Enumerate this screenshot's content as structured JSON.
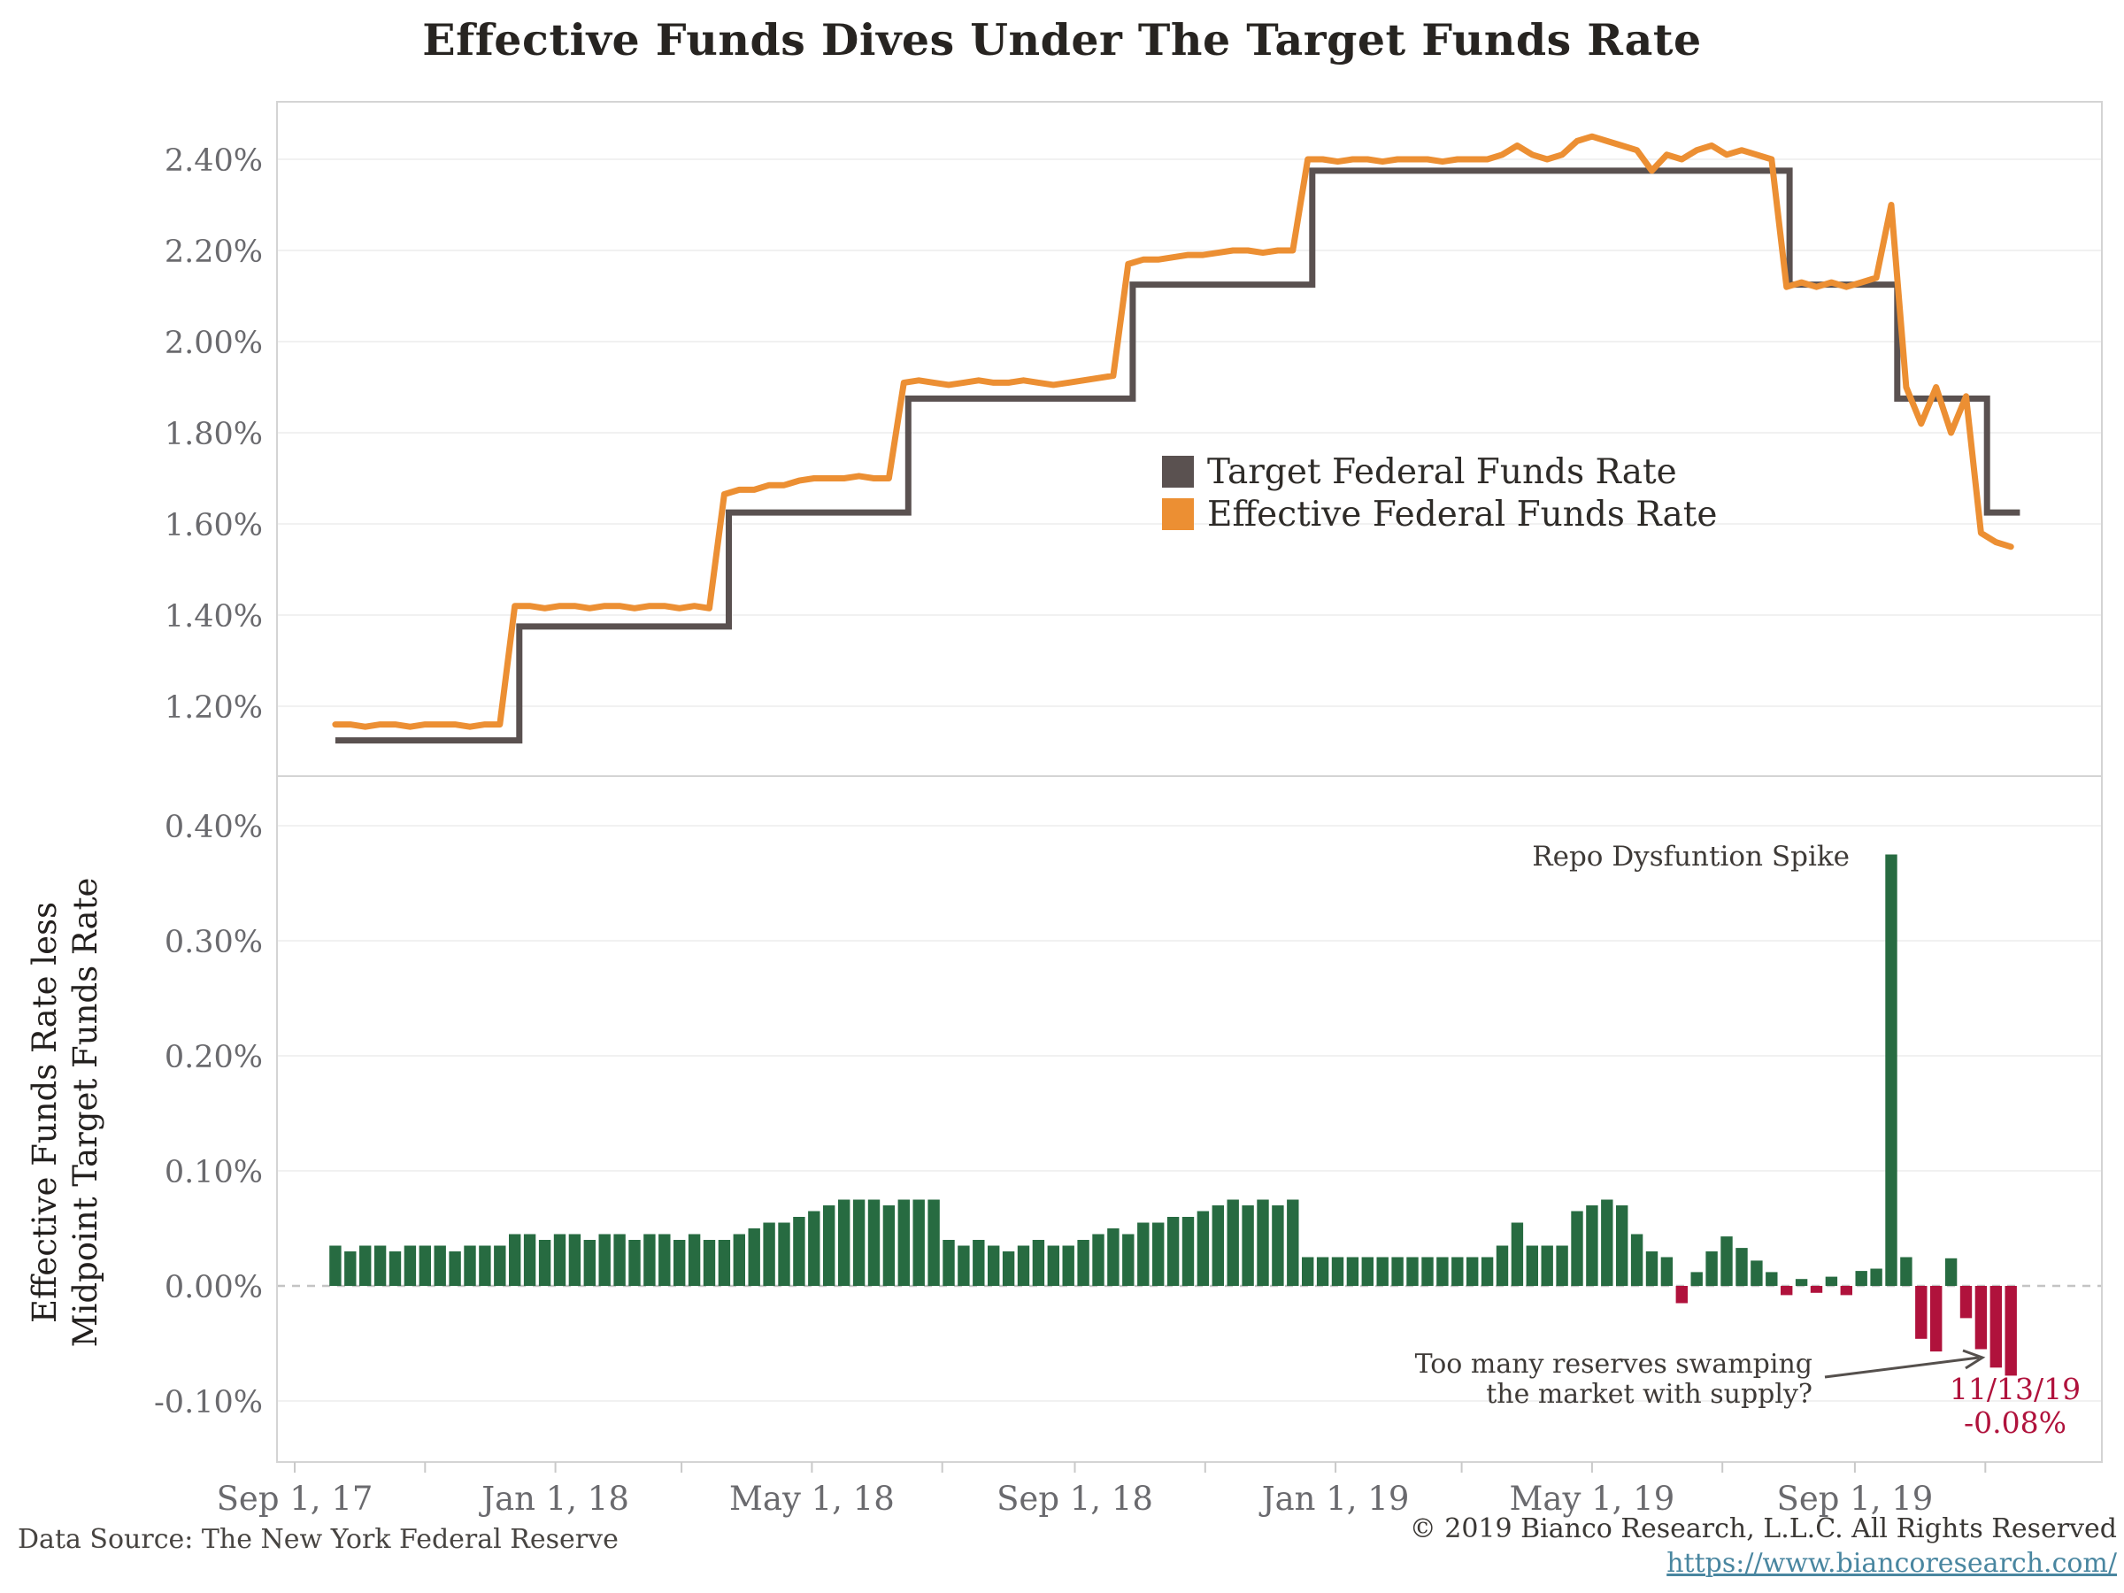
{
  "title": "Effective Funds Dives Under The Target Funds Rate",
  "annotations": {
    "repo_spike": "Repo Dysfuntion Spike",
    "reserves_line1": "Too many reserves swamping",
    "reserves_line2": "the market with supply?",
    "callout_date": "11/13/19",
    "callout_value": "-0.08%"
  },
  "footer": {
    "data_source": "Data Source: The New York Federal Reserve",
    "copyright": "© 2019 Bianco Research, L.L.C. All Rights Reserved",
    "link": "https://www.biancoresearch.com/"
  },
  "colors": {
    "target_line": "#5a5150",
    "effective_line": "#ec8f33",
    "positive_bar": "#276b41",
    "negative_bar": "#b0123c",
    "callout_text": "#b0123c",
    "link": "#4986a0",
    "grid": "#f1f1f1",
    "zero_line": "#c4c4c4",
    "border": "#d4d4d4",
    "tick_text": "#6a6a6e"
  },
  "x_axis": {
    "ticks": [
      {
        "label": "Sep 1, 17",
        "day": 0
      },
      {
        "label": "Jan 1, 18",
        "day": 122
      },
      {
        "label": "May 1, 18",
        "day": 242
      },
      {
        "label": "Sep 1, 18",
        "day": 365
      },
      {
        "label": "Jan 1, 19",
        "day": 487
      },
      {
        "label": "May 1, 19",
        "day": 607
      },
      {
        "label": "Sep 1, 19",
        "day": 730
      }
    ],
    "minor_tick_days": [
      61,
      181,
      303,
      426,
      546,
      668,
      791
    ]
  },
  "chart_data": [
    {
      "type": "line",
      "panel": "top",
      "x_unit": "weekly, week 0 = Sep 20 2017",
      "ylim": [
        1.05,
        2.53
      ],
      "grid": "horizontal",
      "legend_position": "center-right",
      "yticks": [
        "2.40%",
        "2.20%",
        "2.00%",
        "1.80%",
        "1.60%",
        "1.40%",
        "1.20%"
      ],
      "ytick_values": [
        2.4,
        2.2,
        2.0,
        1.8,
        1.6,
        1.4,
        1.2
      ],
      "series": [
        {
          "name": "Target Federal Funds Rate",
          "style": "step",
          "points_week_value": [
            [
              0,
              1.125
            ],
            [
              12.3,
              1.125
            ],
            [
              12.3,
              1.375
            ],
            [
              26.3,
              1.375
            ],
            [
              26.3,
              1.625
            ],
            [
              38.3,
              1.625
            ],
            [
              38.3,
              1.875
            ],
            [
              53.3,
              1.875
            ],
            [
              53.3,
              2.125
            ],
            [
              65.3,
              2.125
            ],
            [
              65.3,
              2.375
            ],
            [
              97.2,
              2.375
            ],
            [
              97.2,
              2.125
            ],
            [
              104.4,
              2.125
            ],
            [
              104.4,
              1.875
            ],
            [
              110.4,
              1.875
            ],
            [
              110.4,
              1.625
            ],
            [
              112.6,
              1.625
            ]
          ]
        },
        {
          "name": "Effective Federal Funds Rate",
          "style": "line",
          "weekly_values": [
            1.16,
            1.16,
            1.155,
            1.16,
            1.16,
            1.155,
            1.16,
            1.16,
            1.16,
            1.155,
            1.16,
            1.16,
            1.42,
            1.42,
            1.415,
            1.42,
            1.42,
            1.415,
            1.42,
            1.42,
            1.415,
            1.42,
            1.42,
            1.415,
            1.42,
            1.415,
            1.665,
            1.675,
            1.675,
            1.685,
            1.685,
            1.695,
            1.7,
            1.7,
            1.7,
            1.705,
            1.7,
            1.7,
            1.91,
            1.915,
            1.91,
            1.905,
            1.91,
            1.915,
            1.91,
            1.91,
            1.915,
            1.91,
            1.905,
            1.91,
            1.915,
            1.92,
            1.925,
            2.17,
            2.18,
            2.18,
            2.185,
            2.19,
            2.19,
            2.195,
            2.2,
            2.2,
            2.195,
            2.2,
            2.2,
            2.4,
            2.4,
            2.395,
            2.4,
            2.4,
            2.395,
            2.4,
            2.4,
            2.4,
            2.395,
            2.4,
            2.4,
            2.4,
            2.41,
            2.43,
            2.41,
            2.4,
            2.41,
            2.44,
            2.45,
            2.44,
            2.43,
            2.42,
            2.375,
            2.41,
            2.4,
            2.42,
            2.43,
            2.41,
            2.42,
            2.41,
            2.4,
            2.12,
            2.13,
            2.12,
            2.13,
            2.12,
            2.13,
            2.14,
            2.3,
            1.9,
            1.82,
            1.9,
            1.8,
            1.88,
            1.58,
            1.56,
            1.55
          ]
        }
      ]
    },
    {
      "type": "bar",
      "panel": "bottom",
      "ylabel_line1": "Effective Funds Rate less",
      "ylabel_line2": "Midpoint Target Funds Rate",
      "ylim": [
        -0.155,
        0.445
      ],
      "yticks": [
        "0.40%",
        "0.30%",
        "0.20%",
        "0.10%",
        "0.00%",
        "-0.10%"
      ],
      "ytick_values": [
        0.4,
        0.3,
        0.2,
        0.1,
        0.0,
        -0.1
      ],
      "weekly_values": [
        0.035,
        0.03,
        0.035,
        0.035,
        0.03,
        0.035,
        0.035,
        0.035,
        0.03,
        0.035,
        0.035,
        0.035,
        0.045,
        0.045,
        0.04,
        0.045,
        0.045,
        0.04,
        0.045,
        0.045,
        0.04,
        0.045,
        0.045,
        0.04,
        0.045,
        0.04,
        0.04,
        0.045,
        0.05,
        0.055,
        0.055,
        0.06,
        0.065,
        0.07,
        0.075,
        0.075,
        0.075,
        0.07,
        0.075,
        0.075,
        0.075,
        0.04,
        0.035,
        0.04,
        0.035,
        0.03,
        0.035,
        0.04,
        0.035,
        0.035,
        0.04,
        0.045,
        0.05,
        0.045,
        0.055,
        0.055,
        0.06,
        0.06,
        0.065,
        0.07,
        0.075,
        0.07,
        0.075,
        0.07,
        0.075,
        0.025,
        0.025,
        0.025,
        0.025,
        0.025,
        0.025,
        0.025,
        0.025,
        0.025,
        0.025,
        0.025,
        0.025,
        0.025,
        0.035,
        0.055,
        0.035,
        0.035,
        0.035,
        0.065,
        0.07,
        0.075,
        0.07,
        0.045,
        0.03,
        0.025,
        -0.015,
        0.012,
        0.03,
        0.043,
        0.033,
        0.022,
        0.012,
        -0.008,
        0.006,
        -0.006,
        0.008,
        -0.008,
        0.013,
        0.015,
        0.375,
        0.025,
        -0.046,
        -0.057,
        0.024,
        -0.028,
        -0.055,
        -0.071,
        -0.078
      ]
    }
  ]
}
